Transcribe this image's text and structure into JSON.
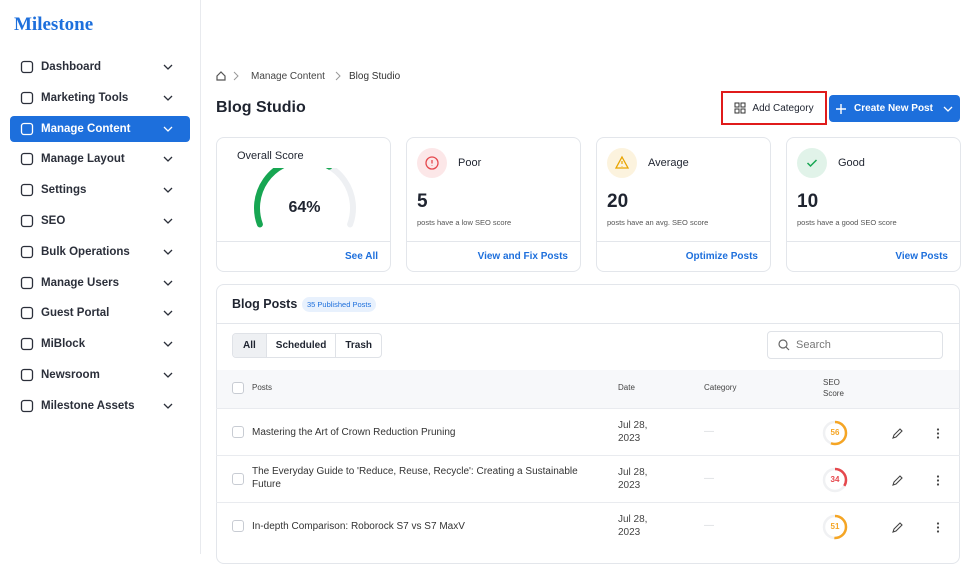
{
  "sidebar": {
    "logo": "Milestone",
    "active": 2,
    "nav": [
      "Dashboard",
      "Marketing Tools",
      "Manage Content",
      "Manage Layout",
      "Settings",
      "SEO",
      "Bulk Operations",
      "Manage Users",
      "Guest Portal",
      "MiBlock",
      "Newsroom",
      "Milestone Assets"
    ]
  },
  "breadcrumb": [
    "Manage Content",
    "Blog Studio"
  ],
  "header": {
    "title": "Blog Studio",
    "add_category": "Add Category",
    "create_new_post": "Create New Post"
  },
  "overall": {
    "title": "Overall Score",
    "score": 64,
    "score_label": "64%",
    "color": "#17a652",
    "link": "See All"
  },
  "score_cards": [
    {
      "label": "Poor",
      "count": 5,
      "description": "posts have a low SEO score",
      "link": "View and Fix Posts",
      "color": "#e5484d"
    },
    {
      "label": "Average",
      "count": 20,
      "description": "posts have an avg. SEO score",
      "link": "Optimize Posts",
      "color": "#e8a400"
    },
    {
      "label": "Good",
      "count": 10,
      "description": "posts have a good SEO score",
      "link": "View Posts",
      "color": "#17a652"
    }
  ],
  "blog_posts": {
    "title": "Blog Posts",
    "badge": "35 Published Posts",
    "tabs": [
      "All",
      "Scheduled",
      "Trash"
    ],
    "active_tab": 0,
    "search_placeholder": "Search",
    "columns": [
      "Posts",
      "Date",
      "Category",
      "SEO Score"
    ],
    "rows": [
      {
        "title": "Mastering the Art of Crown Reduction Pruning",
        "date": "Jul 28, 2023",
        "category": "—",
        "seo_score": 56,
        "color": "#f5a524"
      },
      {
        "title": "The Everyday Guide to 'Reduce, Reuse, Recycle': Creating a Sustainable Future",
        "date": "Jul 28, 2023",
        "category": "—",
        "seo_score": 34,
        "color": "#e5484d"
      },
      {
        "title": "In-depth Comparison: Roborock S7 vs S7 MaxV",
        "date": "Jul 28, 2023",
        "category": "—",
        "seo_score": 51,
        "color": "#f5a524"
      }
    ]
  }
}
